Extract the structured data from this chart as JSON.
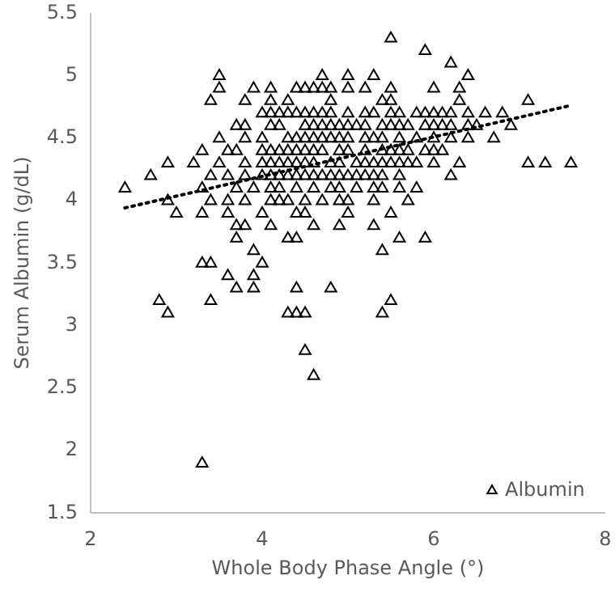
{
  "chart_data": {
    "type": "scatter",
    "xlabel": "Whole Body Phase Angle (°)",
    "ylabel": "Serum Albumin (g/dL)",
    "xlim": [
      2,
      8
    ],
    "xticks": [
      2,
      4,
      6,
      8
    ],
    "ylim": [
      1.5,
      5.5
    ],
    "yticks": [
      1.5,
      2,
      2.5,
      3,
      3.5,
      4,
      4.5,
      5,
      5.5
    ],
    "legend": "bottom right",
    "series": [
      {
        "name": "Albumin",
        "color": "#000000",
        "marker": "triangle",
        "x": [
          5.5,
          5.9,
          6.2,
          3.5,
          4.7,
          5.0,
          5.3,
          6.4,
          3.5,
          3.9,
          4.1,
          4.4,
          4.5,
          4.6,
          4.7,
          4.8,
          5.0,
          5.2,
          5.5,
          6.0,
          6.3,
          3.4,
          3.8,
          4.1,
          4.3,
          4.8,
          5.4,
          5.5,
          6.3,
          7.1,
          4.0,
          4.1,
          4.2,
          4.3,
          4.4,
          4.5,
          4.6,
          4.7,
          4.8,
          5.0,
          5.2,
          5.3,
          5.5,
          5.6,
          5.8,
          5.9,
          6.0,
          6.1,
          6.2,
          6.4,
          6.6,
          6.8,
          3.7,
          3.8,
          4.1,
          4.2,
          4.5,
          4.6,
          4.7,
          4.8,
          4.9,
          5.0,
          5.1,
          5.2,
          5.4,
          5.5,
          5.6,
          5.7,
          5.9,
          6.0,
          6.1,
          6.2,
          6.4,
          6.5,
          6.9,
          3.5,
          3.8,
          4.0,
          4.3,
          4.4,
          4.5,
          4.6,
          4.7,
          4.8,
          4.9,
          5.0,
          5.2,
          5.3,
          5.4,
          5.6,
          5.8,
          6.0,
          6.2,
          6.4,
          6.7,
          3.3,
          3.6,
          3.7,
          4.0,
          4.1,
          4.2,
          4.3,
          4.4,
          4.5,
          4.6,
          4.7,
          4.9,
          5.0,
          5.2,
          5.4,
          5.5,
          5.6,
          5.7,
          5.9,
          6.0,
          6.1,
          2.9,
          3.2,
          3.5,
          3.8,
          4.0,
          4.1,
          4.2,
          4.3,
          4.4,
          4.5,
          4.6,
          4.8,
          4.9,
          5.1,
          5.2,
          5.3,
          5.4,
          5.5,
          5.6,
          5.7,
          5.8,
          6.0,
          6.3,
          7.1,
          7.3,
          7.6,
          2.7,
          3.4,
          3.6,
          3.8,
          4.0,
          4.1,
          4.2,
          4.3,
          4.4,
          4.5,
          4.6,
          4.7,
          4.8,
          4.9,
          5.0,
          5.1,
          5.2,
          5.3,
          5.4,
          5.6,
          6.2,
          2.4,
          3.3,
          3.7,
          3.9,
          4.1,
          4.2,
          4.4,
          4.6,
          4.8,
          4.9,
          5.1,
          5.3,
          5.4,
          5.6,
          5.8,
          2.9,
          3.4,
          3.6,
          3.8,
          4.1,
          4.2,
          4.3,
          4.5,
          4.7,
          4.9,
          5.0,
          5.3,
          5.7,
          3.0,
          3.3,
          3.6,
          4.0,
          4.4,
          4.5,
          5.0,
          5.5,
          3.7,
          3.8,
          4.1,
          4.6,
          4.9,
          5.3,
          3.7,
          4.3,
          4.4,
          5.6,
          5.9,
          3.9,
          5.4,
          3.3,
          3.4,
          4.0,
          3.6,
          3.9,
          3.7,
          3.9,
          4.4,
          4.8,
          2.8,
          3.4,
          5.5,
          2.9,
          4.3,
          4.4,
          4.5,
          5.4,
          4.5,
          4.6,
          3.3
        ],
        "values": [
          5.3,
          5.2,
          5.1,
          5.0,
          5.0,
          5.0,
          5.0,
          5.0,
          4.9,
          4.9,
          4.9,
          4.9,
          4.9,
          4.9,
          4.9,
          4.9,
          4.9,
          4.9,
          4.9,
          4.9,
          4.9,
          4.8,
          4.8,
          4.8,
          4.8,
          4.8,
          4.8,
          4.8,
          4.8,
          4.8,
          4.7,
          4.7,
          4.7,
          4.7,
          4.7,
          4.7,
          4.7,
          4.7,
          4.7,
          4.7,
          4.7,
          4.7,
          4.7,
          4.7,
          4.7,
          4.7,
          4.7,
          4.7,
          4.7,
          4.7,
          4.7,
          4.7,
          4.6,
          4.6,
          4.6,
          4.6,
          4.6,
          4.6,
          4.6,
          4.6,
          4.6,
          4.6,
          4.6,
          4.6,
          4.6,
          4.6,
          4.6,
          4.6,
          4.6,
          4.6,
          4.6,
          4.6,
          4.6,
          4.6,
          4.6,
          4.5,
          4.5,
          4.5,
          4.5,
          4.5,
          4.5,
          4.5,
          4.5,
          4.5,
          4.5,
          4.5,
          4.5,
          4.5,
          4.5,
          4.5,
          4.5,
          4.5,
          4.5,
          4.5,
          4.5,
          4.4,
          4.4,
          4.4,
          4.4,
          4.4,
          4.4,
          4.4,
          4.4,
          4.4,
          4.4,
          4.4,
          4.4,
          4.4,
          4.4,
          4.4,
          4.4,
          4.4,
          4.4,
          4.4,
          4.4,
          4.4,
          4.3,
          4.3,
          4.3,
          4.3,
          4.3,
          4.3,
          4.3,
          4.3,
          4.3,
          4.3,
          4.3,
          4.3,
          4.3,
          4.3,
          4.3,
          4.3,
          4.3,
          4.3,
          4.3,
          4.3,
          4.3,
          4.3,
          4.3,
          4.3,
          4.3,
          4.3,
          4.2,
          4.2,
          4.2,
          4.2,
          4.2,
          4.2,
          4.2,
          4.2,
          4.2,
          4.2,
          4.2,
          4.2,
          4.2,
          4.2,
          4.2,
          4.2,
          4.2,
          4.2,
          4.2,
          4.2,
          4.2,
          4.1,
          4.1,
          4.1,
          4.1,
          4.1,
          4.1,
          4.1,
          4.1,
          4.1,
          4.1,
          4.1,
          4.1,
          4.1,
          4.1,
          4.1,
          4.0,
          4.0,
          4.0,
          4.0,
          4.0,
          4.0,
          4.0,
          4.0,
          4.0,
          4.0,
          4.0,
          4.0,
          4.0,
          3.9,
          3.9,
          3.9,
          3.9,
          3.9,
          3.9,
          3.9,
          3.9,
          3.8,
          3.8,
          3.8,
          3.8,
          3.8,
          3.8,
          3.7,
          3.7,
          3.7,
          3.7,
          3.7,
          3.6,
          3.6,
          3.5,
          3.5,
          3.5,
          3.4,
          3.4,
          3.3,
          3.3,
          3.3,
          3.3,
          3.2,
          3.2,
          3.2,
          3.1,
          3.1,
          3.1,
          3.1,
          3.1,
          2.8,
          2.6,
          1.9
        ]
      },
      {
        "type": "line",
        "color": "#000000",
        "marker": "none",
        "line_style": "dotted",
        "x": [
          2.4,
          7.6
        ],
        "values": [
          3.94,
          4.76
        ]
      }
    ]
  }
}
